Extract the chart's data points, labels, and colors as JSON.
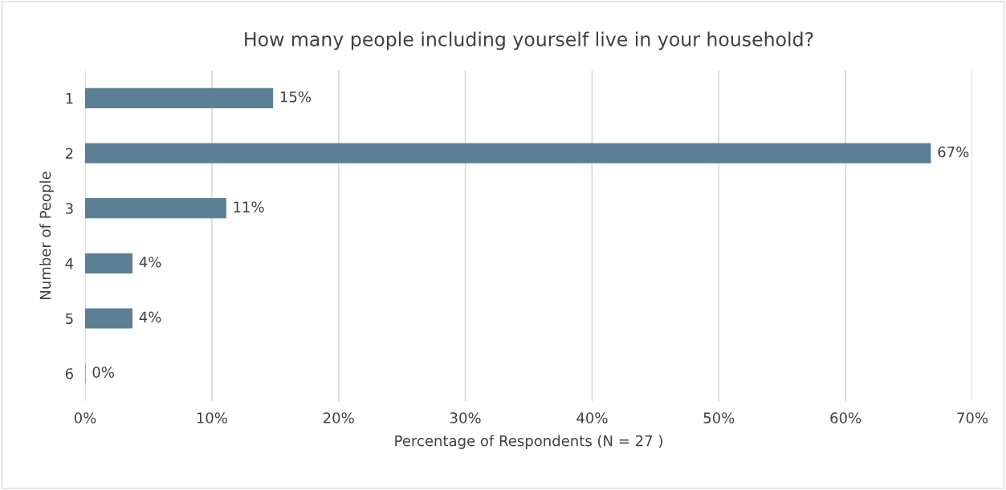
{
  "chart_data": {
    "type": "bar",
    "orientation": "horizontal",
    "title": "How many people including yourself live in your household?",
    "xlabel": "Percentage of Respondents (N = 27 )",
    "ylabel": "Number of People",
    "categories": [
      "1",
      "2",
      "3",
      "4",
      "5",
      "6"
    ],
    "values": [
      14.8,
      66.7,
      11.1,
      3.7,
      3.7,
      0
    ],
    "value_labels": [
      "15%",
      "67%",
      "11%",
      "4%",
      "4%",
      "0%"
    ],
    "color": "#5b7f95",
    "xlim": [
      0,
      70
    ],
    "xticks": [
      {
        "value": 0,
        "label": "0%"
      },
      {
        "value": 10,
        "label": "10%"
      },
      {
        "value": 20,
        "label": "20%"
      },
      {
        "value": 30,
        "label": "30%"
      },
      {
        "value": 40,
        "label": "40%"
      },
      {
        "value": 50,
        "label": "50%"
      },
      {
        "value": 60,
        "label": "60%"
      },
      {
        "value": 70,
        "label": "70%"
      }
    ],
    "grid": "x",
    "legend": false
  }
}
